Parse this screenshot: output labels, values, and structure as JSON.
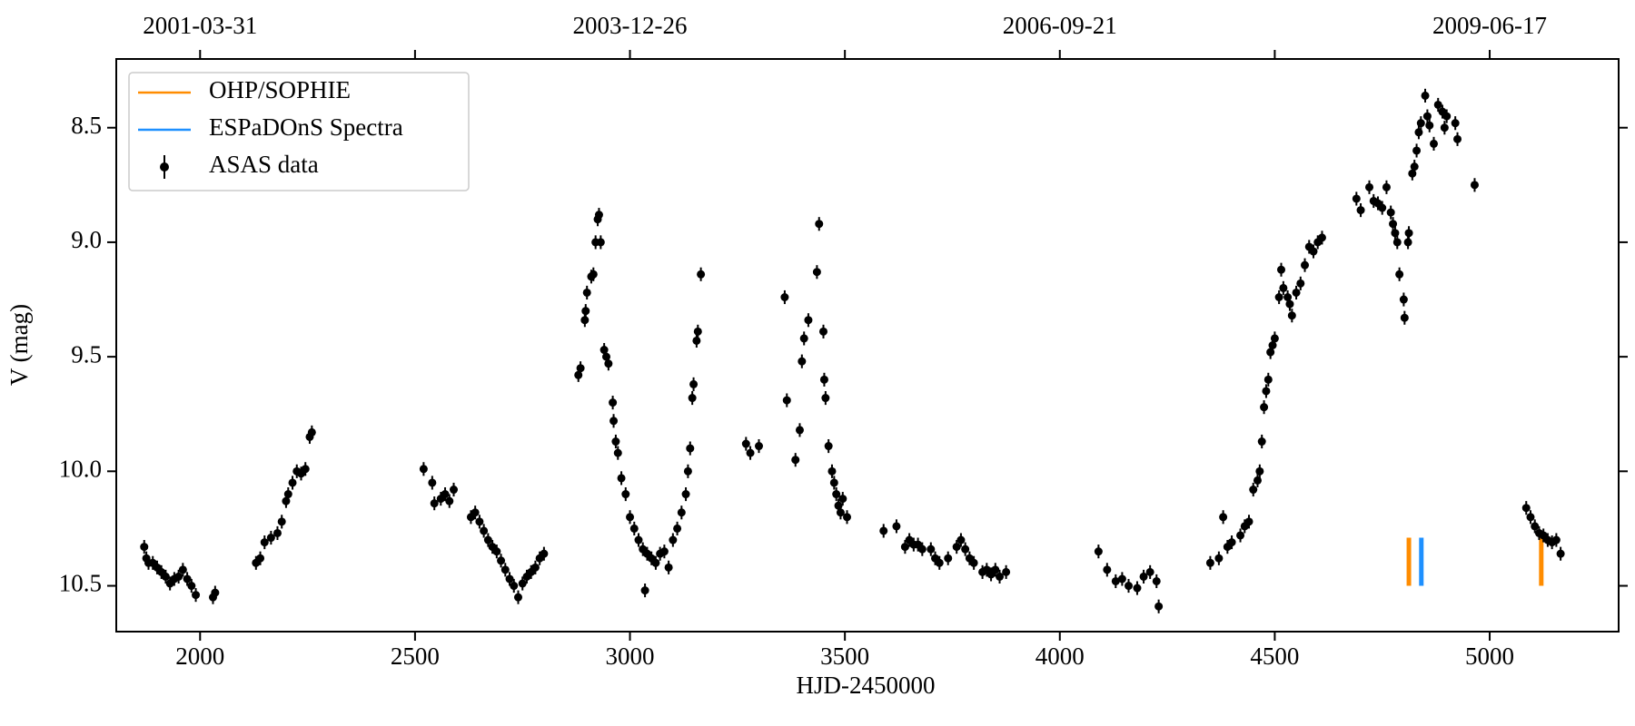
{
  "chart_data": {
    "type": "scatter",
    "xlabel": "HJD-2450000",
    "ylabel": "V (mag)",
    "xlim": [
      1805,
      5300
    ],
    "ylim": [
      10.7,
      8.2
    ],
    "xticks": [
      2000,
      2500,
      3000,
      3500,
      4000,
      4500,
      5000
    ],
    "yticks": [
      8.5,
      {
        "value": 9,
        "label": "9.0"
      },
      9.5,
      {
        "value": 10,
        "label": "10.0"
      },
      10.5
    ],
    "x2ticks": [
      {
        "value": 2000,
        "label": "2001-03-31"
      },
      {
        "value": 3000,
        "label": "2003-12-26"
      },
      {
        "value": 4000,
        "label": "2006-09-21"
      },
      {
        "value": 5000,
        "label": "2009-06-17"
      }
    ],
    "x2ticks_unlabeled": [
      2500,
      3500,
      4500
    ],
    "legend": "upper left",
    "series": [
      {
        "name": "OHP/SOPHIE",
        "type": "vline",
        "color": "#ff8c00",
        "x": [
          4812,
          5120
        ],
        "y_from": 10.5,
        "y_to": 10.29
      },
      {
        "name": "ESPaDOnS Spectra",
        "type": "vline",
        "color": "#1e90ff",
        "x": [
          4841
        ],
        "y_from": 10.5,
        "y_to": 10.29
      },
      {
        "name": "ASAS data",
        "type": "errorbar",
        "color": "#000000",
        "yerr": 0.03,
        "x": [
          1870,
          1875,
          1880,
          1890,
          1900,
          1910,
          1920,
          1930,
          1940,
          1950,
          1960,
          1970,
          1980,
          1990,
          2030,
          2035,
          2130,
          2140,
          2150,
          2165,
          2180,
          2190,
          2200,
          2205,
          2215,
          2225,
          2235,
          2245,
          2255,
          2260,
          2520,
          2540,
          2545,
          2560,
          2570,
          2580,
          2590,
          2630,
          2640,
          2650,
          2660,
          2670,
          2680,
          2690,
          2700,
          2710,
          2720,
          2730,
          2740,
          2750,
          2760,
          2770,
          2780,
          2790,
          2800,
          2880,
          2885,
          2895,
          2897,
          2900,
          2910,
          2915,
          2920,
          2925,
          2928,
          2932,
          2940,
          2945,
          2950,
          2960,
          2962,
          2967,
          2972,
          2980,
          2990,
          3000,
          3010,
          3020,
          3030,
          3035,
          3040,
          3050,
          3060,
          3070,
          3080,
          3090,
          3100,
          3110,
          3120,
          3130,
          3135,
          3140,
          3145,
          3148,
          3155,
          3158,
          3165,
          3270,
          3280,
          3300,
          3360,
          3365,
          3385,
          3395,
          3400,
          3405,
          3415,
          3435,
          3440,
          3450,
          3452,
          3455,
          3462,
          3470,
          3475,
          3480,
          3485,
          3490,
          3495,
          3505,
          3590,
          3620,
          3640,
          3650,
          3660,
          3670,
          3680,
          3700,
          3710,
          3720,
          3740,
          3760,
          3770,
          3780,
          3790,
          3800,
          3820,
          3830,
          3840,
          3850,
          3860,
          3875,
          4090,
          4110,
          4130,
          4145,
          4160,
          4180,
          4195,
          4210,
          4225,
          4230,
          4350,
          4370,
          4380,
          4390,
          4400,
          4420,
          4430,
          4440,
          4450,
          4460,
          4465,
          4470,
          4475,
          4480,
          4485,
          4490,
          4495,
          4500,
          4510,
          4515,
          4520,
          4530,
          4535,
          4540,
          4550,
          4560,
          4570,
          4580,
          4590,
          4600,
          4610,
          4690,
          4700,
          4720,
          4730,
          4740,
          4750,
          4760,
          4770,
          4775,
          4780,
          4785,
          4790,
          4800,
          4802,
          4810,
          4812,
          4820,
          4825,
          4830,
          4835,
          4840,
          4850,
          4855,
          4860,
          4870,
          4880,
          4890,
          4895,
          4900,
          4920,
          4925,
          4965,
          5085,
          5095,
          5105,
          5115,
          5125,
          5135,
          5145,
          5155,
          5165
        ],
        "values": [
          10.33,
          10.38,
          10.4,
          10.4,
          10.42,
          10.44,
          10.46,
          10.49,
          10.47,
          10.46,
          10.43,
          10.47,
          10.5,
          10.54,
          10.55,
          10.53,
          10.4,
          10.38,
          10.31,
          10.29,
          10.27,
          10.22,
          10.13,
          10.1,
          10.05,
          10.0,
          10.01,
          9.99,
          9.85,
          9.83,
          9.99,
          10.05,
          10.14,
          10.12,
          10.1,
          10.13,
          10.08,
          10.2,
          10.18,
          10.22,
          10.26,
          10.3,
          10.33,
          10.35,
          10.39,
          10.43,
          10.47,
          10.5,
          10.55,
          10.49,
          10.46,
          10.44,
          10.42,
          10.38,
          10.36,
          9.58,
          9.55,
          9.34,
          9.3,
          9.22,
          9.15,
          9.14,
          9.0,
          8.9,
          8.88,
          9.0,
          9.47,
          9.5,
          9.53,
          9.7,
          9.78,
          9.87,
          9.92,
          10.03,
          10.1,
          10.2,
          10.25,
          10.3,
          10.34,
          10.52,
          10.36,
          10.38,
          10.4,
          10.36,
          10.35,
          10.42,
          10.3,
          10.25,
          10.18,
          10.1,
          10.0,
          9.9,
          9.68,
          9.62,
          9.43,
          9.39,
          9.14,
          9.88,
          9.92,
          9.89,
          9.24,
          9.69,
          9.95,
          9.82,
          9.52,
          9.42,
          9.34,
          9.13,
          8.92,
          9.39,
          9.6,
          9.68,
          9.89,
          10.0,
          10.05,
          10.1,
          10.15,
          10.18,
          10.12,
          10.2,
          10.26,
          10.24,
          10.33,
          10.3,
          10.32,
          10.32,
          10.34,
          10.34,
          10.38,
          10.4,
          10.38,
          10.33,
          10.3,
          10.34,
          10.38,
          10.4,
          10.44,
          10.43,
          10.45,
          10.43,
          10.46,
          10.44,
          10.35,
          10.43,
          10.48,
          10.47,
          10.5,
          10.51,
          10.46,
          10.44,
          10.48,
          10.59,
          10.4,
          10.38,
          10.2,
          10.33,
          10.31,
          10.28,
          10.24,
          10.22,
          10.08,
          10.04,
          10.0,
          9.87,
          9.72,
          9.65,
          9.6,
          9.48,
          9.45,
          9.42,
          9.24,
          9.12,
          9.2,
          9.24,
          9.27,
          9.32,
          9.22,
          9.18,
          9.1,
          9.02,
          9.04,
          9.0,
          8.98,
          8.81,
          8.86,
          8.76,
          8.82,
          8.83,
          8.85,
          8.76,
          8.87,
          8.92,
          8.96,
          9.0,
          9.14,
          9.25,
          9.33,
          9.0,
          8.96,
          8.7,
          8.67,
          8.6,
          8.52,
          8.48,
          8.36,
          8.45,
          8.49,
          8.57,
          8.4,
          8.43,
          8.5,
          8.45,
          8.48,
          8.55,
          8.75,
          10.16,
          10.2,
          10.24,
          10.27,
          10.28,
          10.3,
          10.31,
          10.3,
          10.36
        ]
      }
    ]
  }
}
